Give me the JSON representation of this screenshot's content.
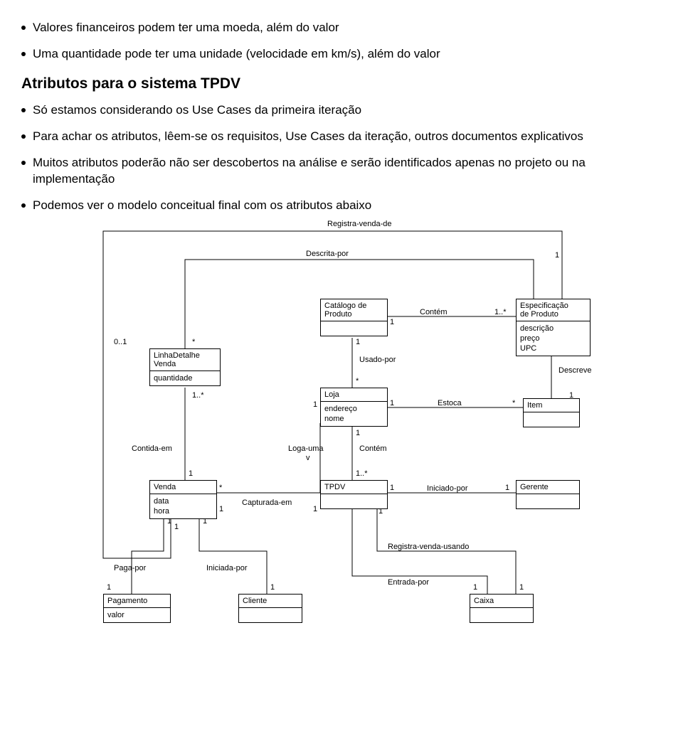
{
  "bullets_top": [
    "Valores financeiros podem ter uma moeda, além do valor",
    "Uma quantidade pode ter uma unidade (velocidade em km/s), além do valor"
  ],
  "section_title": "Atributos para o sistema TPDV",
  "bullets_section": [
    "Só estamos considerando os Use Cases da primeira iteração",
    "Para achar os atributos, lêem-se os requisitos, Use Cases da iteração, outros documentos explicativos",
    "Muitos atributos poderão não ser descobertos na análise e serão identificados apenas no projeto ou na implementação",
    "Podemos ver o modelo conceitual final com os atributos abaixo"
  ],
  "diagram": {
    "classes": {
      "linhaDetalhe": {
        "name": "LinhaDetalhe\nVenda",
        "attrs": "quantidade"
      },
      "catalogo": {
        "name": "Catálogo de\nProduto",
        "attrs": ""
      },
      "espec": {
        "name": "Especificação\nde Produto",
        "attrs": "descrição\npreço\nUPC"
      },
      "loja": {
        "name": "Loja",
        "attrs": "endereço\nnome"
      },
      "item": {
        "name": "Item",
        "attrs": ""
      },
      "venda": {
        "name": "Venda",
        "attrs": "data\nhora"
      },
      "tpdv": {
        "name": "TPDV",
        "attrs": ""
      },
      "gerente": {
        "name": "Gerente",
        "attrs": ""
      },
      "pagamento": {
        "name": "Pagamento",
        "attrs": "valor"
      },
      "cliente": {
        "name": "Cliente",
        "attrs": ""
      },
      "caixa": {
        "name": "Caixa",
        "attrs": ""
      }
    },
    "assoc": {
      "registraVenda": "Registra-venda-de",
      "descritaPor": "Descrita-por",
      "contem1": "Contém",
      "usadoPor": "Usado-por",
      "descreve": "Descreve",
      "estoca": "Estoca",
      "contidaEm": "Contida-em",
      "logaUma": "Loga-uma",
      "contem2": "Contém",
      "capturadaEm": "Capturada-em",
      "iniciadoPor": "Iniciado-por",
      "pagaPor": "Paga-por",
      "iniciadaPor": "Iniciada-por",
      "registraVendaUsando": "Registra-venda-usando",
      "entradaPor": "Entrada-por"
    },
    "mult": {
      "m01": "0..1",
      "m1": "1",
      "mstar": "*",
      "m1star": "1..*"
    }
  }
}
